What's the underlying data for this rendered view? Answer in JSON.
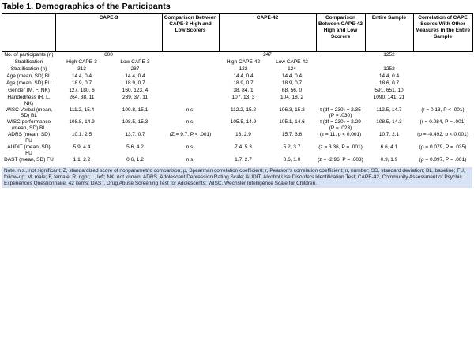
{
  "title": "Table 1. Demographics of the Participants",
  "table": {
    "groups": [
      {
        "label": "CAPE-3",
        "span": 2
      },
      {
        "label": "Comparison Between CAPE-3 High and Low Scorers",
        "span": 1
      },
      {
        "label": "CAPE-42",
        "span": 2
      },
      {
        "label": "Comparison Between CAPE-42 High and Low Scorers",
        "span": 1
      },
      {
        "label": "Entire Sample",
        "span": 1
      },
      {
        "label": "Correlation of CAPE Scores With Other Measures in the Entire Sample",
        "span": 1
      }
    ],
    "rows": [
      {
        "label": "No. of participants (n)",
        "span_groups": true,
        "cells": [
          "600",
          "",
          "",
          "247",
          "",
          "",
          "1252",
          ""
        ]
      },
      {
        "label": "Stratification",
        "cells": [
          "High CAPE-3",
          "Low CAPE-3",
          "",
          "High CAPE-42",
          "Low CAPE-42",
          "",
          "",
          ""
        ]
      },
      {
        "label": "Stratification (n)",
        "cells": [
          "313",
          "287",
          "",
          "123",
          "124",
          "",
          "1252",
          ""
        ]
      },
      {
        "label": "Age (mean, SD) BL",
        "cells": [
          "14.4, 0.4",
          "14.4, 0.4",
          "",
          "14.4, 0.4",
          "14.4, 0.4",
          "",
          "14.4, 0.4",
          ""
        ]
      },
      {
        "label": "Age (mean, SD) FU",
        "cells": [
          "18.9, 0.7",
          "18.9, 0.7",
          "",
          "18.9, 0.7",
          "18.9, 0.7",
          "",
          "18.6, 0.7",
          ""
        ]
      },
      {
        "label": "Gender (M, F, NK)",
        "cells": [
          "127, 180, 6",
          "160, 123, 4",
          "",
          "38, 84, 1",
          "68, 56, 0",
          "",
          "591, 651, 10",
          ""
        ]
      },
      {
        "label": "Handedness (R, L, NK)",
        "cells": [
          "264, 38, 11",
          "239, 37, 11",
          "",
          "107, 13, 3",
          "104, 18, 2",
          "",
          "1090, 141, 21",
          ""
        ]
      },
      {
        "label": "WISC Verbal (mean, SD) BL",
        "cells": [
          "111.2, 15.4",
          "109.8, 15.1",
          "n.s.",
          "112.2, 15.2",
          "106.3, 15.2",
          "t (df = 230) = 2.35 (P = .030)",
          "112.5, 14.7",
          "(r = 0.13, P < .001)"
        ]
      },
      {
        "label": "WISC performance (mean, SD) BL",
        "cells": [
          "108.8, 14.9",
          "108.5, 15.3",
          "n.s.",
          "105.5, 14.9",
          "105.1, 14.6",
          "t (df = 230) = 2.29 (P = .023)",
          "108.5, 14.3",
          "(r = 0.084, P = .001)"
        ]
      },
      {
        "label": "ADRS (mean, SD) FU",
        "cells": [
          "10.1, 2.5",
          "13.7, 0.7",
          "(Z = 9.7, P < .001)",
          "16, 2.9",
          "15.7, 3.6",
          "(z = 11, p < 0.001)",
          "10.7, 2.1",
          "(ρ = -0.492, p < 0.001)"
        ]
      },
      {
        "label": "AUDIT (mean, SD) FU",
        "cells": [
          "5.9, 4.4",
          "5.6, 4.2",
          "n.s.",
          "7.4, 5.3",
          "5.2, 3.7",
          "(z = 3.36, P = .001)",
          "6.6, 4.1",
          "(ρ = 0.079, P = .035)"
        ]
      },
      {
        "label": "DAST (mean, SD) FU",
        "cells": [
          "1.1, 2.2",
          "0.6, 1.2",
          "n.s.",
          "1.7, 2.7",
          "0.6, 1.0",
          "(z = -2.96, P = .003)",
          "0.9, 1.9",
          "(ρ = 0.097, P = .001)"
        ]
      }
    ]
  },
  "footnote": "Note. n.s., not significant; Z, standardized score of nonparametric comparison; ρ, Spearman correlation coefficient; r, Pearson's correlation coefficient; n, number; SD, standard deviation; BL, baseline; FU, follow-up; M, male; F, female; R, right; L, left; NK, not known; ADRS, Adolescent Depression Rating Scale; AUDIT, Alcohol Use Disorders Identification Test; CAPE-42, Community Assessment of Psychic Experiences Questionnaire, 42 items; DAST, Drug Abuse Screening Test for Adolescents; WISC, Wechsler Intelligence Scale for Children.",
  "footnote_highlight_color": "#d7e3f4"
}
